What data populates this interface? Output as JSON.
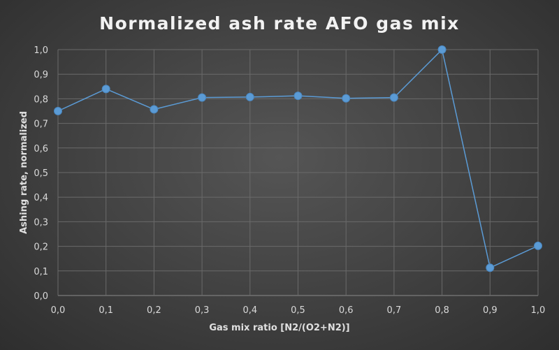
{
  "chart_data": {
    "type": "line",
    "title": "Normalized ash rate AFO gas mix",
    "xlabel": "Gas mix ratio [N2/(O2+N2)]",
    "ylabel": "Ashing rate, normalized",
    "x_ticks": [
      "0,0",
      "0,1",
      "0,2",
      "0,3",
      "0,4",
      "0,5",
      "0,6",
      "0,7",
      "0,8",
      "0,9",
      "1,0"
    ],
    "y_ticks": [
      "0,0",
      "0,1",
      "0,2",
      "0,3",
      "0,4",
      "0,5",
      "0,6",
      "0,7",
      "0,8",
      "0,9",
      "1,0"
    ],
    "xlim": [
      0,
      1
    ],
    "ylim": [
      0,
      1
    ],
    "grid": true,
    "series": [
      {
        "color": "#5b9bd5",
        "x": [
          0.0,
          0.1,
          0.2,
          0.3,
          0.4,
          0.5,
          0.6,
          0.7,
          0.8,
          0.9,
          1.0
        ],
        "y": [
          0.75,
          0.84,
          0.757,
          0.805,
          0.807,
          0.812,
          0.802,
          0.805,
          1.0,
          0.113,
          0.202
        ]
      }
    ]
  }
}
